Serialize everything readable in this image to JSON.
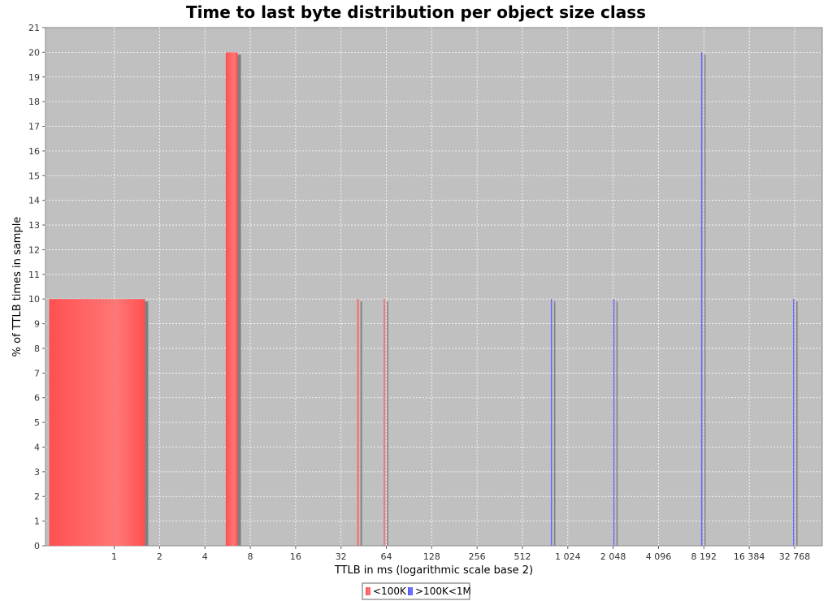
{
  "chart_data": {
    "type": "bar",
    "title": "Time to last byte distribution per object size class",
    "xlabel": "TTLB in ms (logarithmic scale base 2)",
    "ylabel": "% of TTLB times in sample",
    "xscale": "log2",
    "xlim": [
      0.35,
      50000
    ],
    "ylim": [
      0,
      21
    ],
    "grid": true,
    "legend_position": "bottom-center",
    "x_ticks": [
      {
        "value": 1,
        "label": "1"
      },
      {
        "value": 2,
        "label": "2"
      },
      {
        "value": 4,
        "label": "4"
      },
      {
        "value": 8,
        "label": "8"
      },
      {
        "value": 16,
        "label": "16"
      },
      {
        "value": 32,
        "label": "32"
      },
      {
        "value": 64,
        "label": "64"
      },
      {
        "value": 128,
        "label": "128"
      },
      {
        "value": 256,
        "label": "256"
      },
      {
        "value": 512,
        "label": "512"
      },
      {
        "value": 1024,
        "label": "1 024"
      },
      {
        "value": 2048,
        "label": "2 048"
      },
      {
        "value": 4096,
        "label": "4 096"
      },
      {
        "value": 8192,
        "label": "8 192"
      },
      {
        "value": 16384,
        "label": "16 384"
      },
      {
        "value": 32768,
        "label": "32 768"
      }
    ],
    "y_ticks": [
      0,
      1,
      2,
      3,
      4,
      5,
      6,
      7,
      8,
      9,
      10,
      11,
      12,
      13,
      14,
      15,
      16,
      17,
      18,
      19,
      20,
      21
    ],
    "series": [
      {
        "name": "<100K",
        "color": "#ff5555",
        "bars": [
          {
            "x_start": 0.37,
            "x_end": 1.6,
            "value": 10
          },
          {
            "x_start": 5.5,
            "x_end": 6.6,
            "value": 20
          },
          {
            "x_start": 41,
            "x_end": 42,
            "value": 10
          },
          {
            "x_start": 61.5,
            "x_end": 62.5,
            "value": 10
          }
        ]
      },
      {
        "name": ">100K<1M",
        "color": "#5555ff",
        "bars": [
          {
            "x_start": 790,
            "x_end": 800,
            "value": 10
          },
          {
            "x_start": 2050,
            "x_end": 2070,
            "value": 10
          },
          {
            "x_start": 7850,
            "x_end": 7930,
            "value": 20
          },
          {
            "x_start": 32000,
            "x_end": 32300,
            "value": 10
          }
        ]
      }
    ]
  }
}
